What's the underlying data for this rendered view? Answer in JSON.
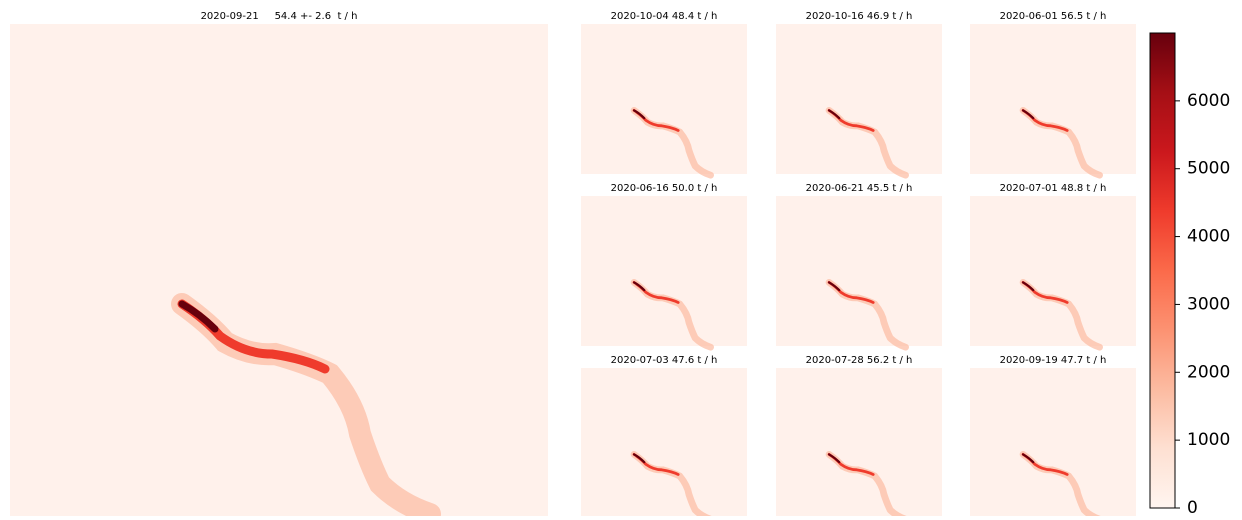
{
  "chart_data": {
    "type": "heatmap-grid",
    "main_title": "2020-09-21     54.4 +- 2.6  t / h",
    "panel_titles": [
      "2020-10-04     48.4  t / h",
      "2020-10-16     46.9  t / h",
      "2020-06-01     56.5  t / h",
      "2020-06-16     50.0  t / h",
      "2020-06-21     45.5  t / h",
      "2020-07-01     48.8  t / h",
      "2020-07-03     47.6  t / h",
      "2020-07-28     56.2  t / h",
      "2020-09-19     47.7  t / h"
    ],
    "colorbar": {
      "lim": [
        0,
        7000
      ],
      "ticks": [
        0,
        1000,
        2000,
        3000,
        4000,
        5000,
        6000
      ],
      "colors": [
        "#fff5f0",
        "#fee0d2",
        "#fcbba1",
        "#fc9272",
        "#fb6a4a",
        "#ef3b2c",
        "#cb181d",
        "#a50f15",
        "#67000d"
      ]
    }
  }
}
